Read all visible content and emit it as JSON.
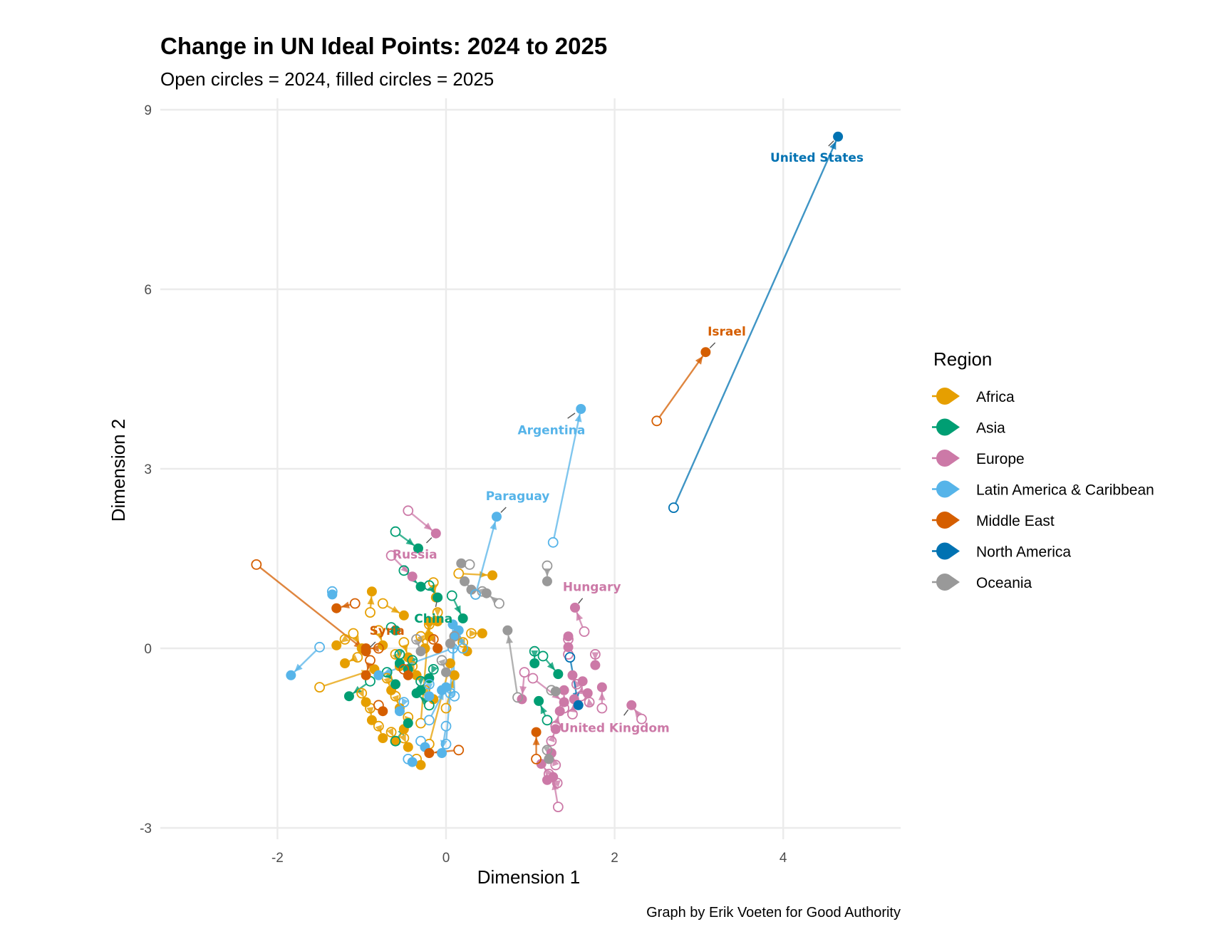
{
  "chart_data": {
    "type": "scatter",
    "title": "Change in UN Ideal Points: 2024 to 2025",
    "subtitle": "Open circles = 2024, filled circles = 2025",
    "xlabel": "Dimension 1",
    "ylabel": "Dimension 2",
    "caption": "Graph by Erik Voeten for Good Authority",
    "xlim": [
      -3.3,
      5.35
    ],
    "ylim": [
      -3.2,
      9.2
    ],
    "x_ticks": [
      -2,
      0,
      2,
      4
    ],
    "y_ticks": [
      -3,
      0,
      3,
      6,
      9
    ],
    "grid": true,
    "legend": {
      "title": "Region",
      "position": "right",
      "entries": [
        {
          "name": "Africa",
          "color": "#E69F00"
        },
        {
          "name": "Asia",
          "color": "#009E73"
        },
        {
          "name": "Europe",
          "color": "#CC79A7"
        },
        {
          "name": "Latin America & Caribbean",
          "color": "#56B4E9"
        },
        {
          "name": "Middle East",
          "color": "#D55E00"
        },
        {
          "name": "North America",
          "color": "#0072B2"
        },
        {
          "name": "Oceania",
          "color": "#999999"
        }
      ]
    },
    "encoding": {
      "open_circle": "2024",
      "filled_circle": "2025",
      "arrow": "movement from 2024 to 2025"
    },
    "labeled_countries": [
      {
        "name": "United States",
        "region": "North America",
        "x2024": 2.7,
        "y2024": 2.35,
        "x2025": 4.65,
        "y2025": 8.55,
        "label_dx": -0.25,
        "label_dy": -0.35
      },
      {
        "name": "Israel",
        "region": "Middle East",
        "x2024": 2.5,
        "y2024": 3.8,
        "x2025": 3.08,
        "y2025": 4.95,
        "label_dx": 0.25,
        "label_dy": 0.35
      },
      {
        "name": "Argentina",
        "region": "Latin America & Caribbean",
        "x2024": 1.27,
        "y2024": 1.77,
        "x2025": 1.6,
        "y2025": 4.0,
        "label_dx": -0.35,
        "label_dy": -0.35
      },
      {
        "name": "Paraguay",
        "region": "Latin America & Caribbean",
        "x2024": 0.35,
        "y2024": 0.9,
        "x2025": 0.6,
        "y2025": 2.2,
        "label_dx": 0.25,
        "label_dy": 0.35
      },
      {
        "name": "Syria",
        "region": "Middle East",
        "x2024": -2.25,
        "y2024": 1.4,
        "x2025": -0.95,
        "y2025": -0.05,
        "label_dx": 0.25,
        "label_dy": 0.35
      },
      {
        "name": "Russia",
        "region": "Europe",
        "x2024": -0.45,
        "y2024": 2.3,
        "x2025": -0.12,
        "y2025": 1.92,
        "label_dx": -0.25,
        "label_dy": -0.35
      },
      {
        "name": "China",
        "region": "Asia",
        "x2024": -0.2,
        "y2024": 1.05,
        "x2025": -0.1,
        "y2025": 0.85,
        "label_dx": -0.05,
        "label_dy": -0.35
      },
      {
        "name": "Hungary",
        "region": "Europe",
        "x2024": 1.64,
        "y2024": 0.28,
        "x2025": 1.53,
        "y2025": 0.68,
        "label_dx": 0.2,
        "label_dy": 0.35
      },
      {
        "name": "United Kingdom",
        "region": "Europe",
        "x2024": 2.32,
        "y2024": -1.18,
        "x2025": 2.2,
        "y2025": -0.95,
        "label_dx": -0.2,
        "label_dy": -0.38
      }
    ],
    "other_countries": [
      {
        "region": "Africa",
        "x2024": -0.9,
        "y2024": 0.6,
        "x2025": -0.88,
        "y2025": 0.95
      },
      {
        "region": "Africa",
        "x2024": -1.2,
        "y2024": 0.15,
        "x2025": -1.3,
        "y2025": 0.05
      },
      {
        "region": "Africa",
        "x2024": -1.1,
        "y2024": 0.25,
        "x2025": -1.0,
        "y2025": 0.0
      },
      {
        "region": "Africa",
        "x2024": -1.05,
        "y2024": -0.15,
        "x2025": -1.2,
        "y2025": -0.25
      },
      {
        "region": "Africa",
        "x2024": -1.5,
        "y2024": -0.65,
        "x2025": -0.85,
        "y2025": -0.35
      },
      {
        "region": "Africa",
        "x2024": -0.8,
        "y2024": 0.3,
        "x2025": -0.75,
        "y2025": 0.05
      },
      {
        "region": "Africa",
        "x2024": -0.6,
        "y2024": -0.1,
        "x2025": -0.55,
        "y2025": -0.3
      },
      {
        "region": "Africa",
        "x2024": -0.5,
        "y2024": 0.1,
        "x2025": -0.45,
        "y2025": -0.15
      },
      {
        "region": "Africa",
        "x2024": -0.4,
        "y2024": -0.3,
        "x2025": -0.35,
        "y2025": -0.45
      },
      {
        "region": "Africa",
        "x2024": -0.3,
        "y2024": 0.2,
        "x2025": -0.25,
        "y2025": 0.0
      },
      {
        "region": "Africa",
        "x2024": -0.2,
        "y2024": 0.4,
        "x2025": -0.2,
        "y2025": 0.2
      },
      {
        "region": "Africa",
        "x2024": -0.15,
        "y2024": 1.1,
        "x2025": -0.12,
        "y2025": 0.85
      },
      {
        "region": "Africa",
        "x2024": -0.1,
        "y2024": 0.6,
        "x2025": -0.1,
        "y2025": 0.45
      },
      {
        "region": "Africa",
        "x2024": 0.15,
        "y2024": 1.25,
        "x2025": 0.55,
        "y2025": 1.22
      },
      {
        "region": "Africa",
        "x2024": 0.3,
        "y2024": 0.25,
        "x2025": 0.43,
        "y2025": 0.25
      },
      {
        "region": "Africa",
        "x2024": -0.7,
        "y2024": -0.5,
        "x2025": -0.65,
        "y2025": -0.7
      },
      {
        "region": "Africa",
        "x2024": -0.6,
        "y2024": -0.8,
        "x2025": -0.55,
        "y2025": -1.0
      },
      {
        "region": "Africa",
        "x2024": -0.9,
        "y2024": -1.0,
        "x2025": -0.88,
        "y2025": -1.2
      },
      {
        "region": "Africa",
        "x2024": -0.8,
        "y2024": -1.3,
        "x2025": -0.75,
        "y2025": -1.5
      },
      {
        "region": "Africa",
        "x2024": -0.5,
        "y2024": -1.5,
        "x2025": -0.45,
        "y2025": -1.65
      },
      {
        "region": "Africa",
        "x2024": -0.35,
        "y2024": -1.85,
        "x2025": -0.3,
        "y2025": -1.95
      },
      {
        "region": "Africa",
        "x2024": -0.2,
        "y2024": -1.6,
        "x2025": 0.05,
        "y2025": -0.25
      },
      {
        "region": "Africa",
        "x2024": 0.0,
        "y2024": -1.0,
        "x2025": 0.1,
        "y2025": -0.45
      },
      {
        "region": "Africa",
        "x2024": -0.25,
        "y2024": -0.7,
        "x2025": -0.15,
        "y2025": -0.85
      },
      {
        "region": "Africa",
        "x2024": -0.45,
        "y2024": -1.15,
        "x2025": -0.5,
        "y2025": -1.35
      },
      {
        "region": "Africa",
        "x2024": -0.65,
        "y2024": -1.4,
        "x2025": -0.6,
        "y2025": -1.55
      },
      {
        "region": "Africa",
        "x2024": -1.0,
        "y2024": -0.75,
        "x2025": -0.95,
        "y2025": -0.9
      },
      {
        "region": "Africa",
        "x2024": -0.75,
        "y2024": 0.75,
        "x2025": -0.5,
        "y2025": 0.55
      },
      {
        "region": "Africa",
        "x2024": -0.3,
        "y2024": -1.25,
        "x2025": -0.2,
        "y2025": 0.45
      },
      {
        "region": "Africa",
        "x2024": 0.2,
        "y2024": 0.1,
        "x2025": 0.25,
        "y2025": -0.05
      },
      {
        "region": "Asia",
        "x2024": -0.6,
        "y2024": 1.95,
        "x2025": -0.33,
        "y2025": 1.67
      },
      {
        "region": "Asia",
        "x2024": -0.5,
        "y2024": 1.3,
        "x2025": -0.3,
        "y2025": 1.03
      },
      {
        "region": "Asia",
        "x2024": 0.07,
        "y2024": 0.88,
        "x2025": 0.2,
        "y2025": 0.5
      },
      {
        "region": "Asia",
        "x2024": -0.65,
        "y2024": 0.35,
        "x2025": -0.6,
        "y2025": 0.3
      },
      {
        "region": "Asia",
        "x2024": -0.55,
        "y2024": -0.1,
        "x2025": -0.55,
        "y2025": -0.25
      },
      {
        "region": "Asia",
        "x2024": -0.4,
        "y2024": -0.2,
        "x2025": -0.45,
        "y2025": -0.35
      },
      {
        "region": "Asia",
        "x2024": -0.7,
        "y2024": -0.4,
        "x2025": -0.6,
        "y2025": -0.6
      },
      {
        "region": "Asia",
        "x2024": -0.3,
        "y2024": -0.55,
        "x2025": -0.3,
        "y2025": -0.7
      },
      {
        "region": "Asia",
        "x2024": -0.15,
        "y2024": -0.35,
        "x2025": -0.2,
        "y2025": -0.5
      },
      {
        "region": "Asia",
        "x2024": -0.9,
        "y2024": -0.55,
        "x2025": -1.15,
        "y2025": -0.8
      },
      {
        "region": "Asia",
        "x2024": -0.6,
        "y2024": -1.55,
        "x2025": -0.45,
        "y2025": -1.25
      },
      {
        "region": "Asia",
        "x2024": -0.2,
        "y2024": -0.95,
        "x2025": -0.35,
        "y2025": -0.75
      },
      {
        "region": "Asia",
        "x2024": 1.05,
        "y2024": -0.05,
        "x2025": 1.05,
        "y2025": -0.25
      },
      {
        "region": "Asia",
        "x2024": 1.15,
        "y2024": -0.13,
        "x2025": 1.33,
        "y2025": -0.43
      },
      {
        "region": "Asia",
        "x2024": 1.2,
        "y2024": -1.2,
        "x2025": 1.1,
        "y2025": -0.88
      },
      {
        "region": "Europe",
        "x2024": -0.65,
        "y2024": 1.55,
        "x2025": -0.4,
        "y2025": 1.2
      },
      {
        "region": "Europe",
        "x2024": 0.93,
        "y2024": -0.4,
        "x2025": 0.9,
        "y2025": -0.85
      },
      {
        "region": "Europe",
        "x2024": 1.03,
        "y2024": -0.5,
        "x2025": 1.4,
        "y2025": -0.9
      },
      {
        "region": "Europe",
        "x2024": 1.77,
        "y2024": -0.1,
        "x2025": 1.77,
        "y2025": -0.28
      },
      {
        "region": "Europe",
        "x2024": 1.85,
        "y2024": -1.0,
        "x2025": 1.85,
        "y2025": -0.65
      },
      {
        "region": "Europe",
        "x2024": 1.45,
        "y2024": 0.15,
        "x2025": 1.45,
        "y2025": 0.2
      },
      {
        "region": "Europe",
        "x2024": 1.45,
        "y2024": -0.1,
        "x2025": 1.45,
        "y2025": 0.02
      },
      {
        "region": "Europe",
        "x2024": 1.55,
        "y2024": -0.6,
        "x2025": 1.5,
        "y2025": -0.45
      },
      {
        "region": "Europe",
        "x2024": 1.6,
        "y2024": -0.8,
        "x2025": 1.62,
        "y2025": -0.55
      },
      {
        "region": "Europe",
        "x2024": 1.7,
        "y2024": -0.9,
        "x2025": 1.68,
        "y2025": -0.75
      },
      {
        "region": "Europe",
        "x2024": 1.4,
        "y2024": -1.0,
        "x2025": 1.4,
        "y2025": -0.7
      },
      {
        "region": "Europe",
        "x2024": 1.5,
        "y2024": -1.1,
        "x2025": 1.52,
        "y2025": -0.85
      },
      {
        "region": "Europe",
        "x2024": 1.3,
        "y2024": -1.3,
        "x2025": 1.35,
        "y2025": -1.05
      },
      {
        "region": "Europe",
        "x2024": 1.25,
        "y2024": -1.55,
        "x2025": 1.3,
        "y2025": -1.35
      },
      {
        "region": "Europe",
        "x2024": 1.3,
        "y2024": -1.95,
        "x2025": 1.25,
        "y2025": -1.75
      },
      {
        "region": "Europe",
        "x2024": 1.33,
        "y2024": -2.65,
        "x2025": 1.27,
        "y2025": -2.15
      },
      {
        "region": "Europe",
        "x2024": 1.32,
        "y2024": -2.25,
        "x2025": 1.2,
        "y2025": -2.2
      },
      {
        "region": "Europe",
        "x2024": 1.22,
        "y2024": -2.1,
        "x2025": 1.13,
        "y2025": -1.93
      },
      {
        "region": "Latin America & Caribbean",
        "x2024": -1.5,
        "y2024": 0.02,
        "x2025": -1.84,
        "y2025": -0.45
      },
      {
        "region": "Latin America & Caribbean",
        "x2024": -1.35,
        "y2024": 0.95,
        "x2025": -1.35,
        "y2025": 0.9
      },
      {
        "region": "Latin America & Caribbean",
        "x2024": 0.08,
        "y2024": 0.0,
        "x2025": -0.8,
        "y2025": -0.45
      },
      {
        "region": "Latin America & Caribbean",
        "x2024": 0.1,
        "y2024": -0.8,
        "x2025": 0.08,
        "y2025": 0.4
      },
      {
        "region": "Latin America & Caribbean",
        "x2024": 0.0,
        "y2024": -1.6,
        "x2025": 0.1,
        "y2025": 0.2
      },
      {
        "region": "Latin America & Caribbean",
        "x2024": -0.2,
        "y2024": -1.2,
        "x2025": 0.0,
        "y2025": -0.65
      },
      {
        "region": "Latin America & Caribbean",
        "x2024": -0.3,
        "y2024": -1.55,
        "x2025": -0.25,
        "y2025": -1.65
      },
      {
        "region": "Latin America & Caribbean",
        "x2024": -0.45,
        "y2024": -1.85,
        "x2025": -0.4,
        "y2025": -1.9
      },
      {
        "region": "Latin America & Caribbean",
        "x2024": 0.0,
        "y2024": -1.3,
        "x2025": -0.05,
        "y2025": -1.75
      },
      {
        "region": "Latin America & Caribbean",
        "x2024": 0.2,
        "y2024": 0.0,
        "x2025": 0.15,
        "y2025": 0.3
      },
      {
        "region": "Latin America & Caribbean",
        "x2024": -0.5,
        "y2024": -0.9,
        "x2025": -0.55,
        "y2025": -1.05
      },
      {
        "region": "Latin America & Caribbean",
        "x2024": -0.2,
        "y2024": -0.6,
        "x2025": -0.2,
        "y2025": -0.8
      },
      {
        "region": "Latin America & Caribbean",
        "x2024": 0.05,
        "y2024": -0.75,
        "x2025": -0.05,
        "y2025": -0.7
      },
      {
        "region": "Middle East",
        "x2024": -1.08,
        "y2024": 0.75,
        "x2025": -1.3,
        "y2025": 0.67
      },
      {
        "region": "Middle East",
        "x2024": -0.8,
        "y2024": 0.0,
        "x2025": -0.95,
        "y2025": 0.0
      },
      {
        "region": "Middle East",
        "x2024": -0.9,
        "y2024": -0.2,
        "x2025": -0.95,
        "y2025": -0.45
      },
      {
        "region": "Middle East",
        "x2024": -0.5,
        "y2024": -0.35,
        "x2025": -0.45,
        "y2025": -0.45
      },
      {
        "region": "Middle East",
        "x2024": -0.8,
        "y2024": -0.95,
        "x2025": -0.75,
        "y2025": -1.05
      },
      {
        "region": "Middle East",
        "x2024": 0.15,
        "y2024": -1.7,
        "x2025": -0.2,
        "y2025": -1.75
      },
      {
        "region": "Middle East",
        "x2024": 1.07,
        "y2024": -1.85,
        "x2025": 1.07,
        "y2025": -1.4
      },
      {
        "region": "Middle East",
        "x2024": -0.15,
        "y2024": 0.15,
        "x2025": -0.1,
        "y2025": 0.0
      },
      {
        "region": "North America",
        "x2024": 1.47,
        "y2024": -0.15,
        "x2025": 1.57,
        "y2025": -0.95
      },
      {
        "region": "Oceania",
        "x2024": 0.28,
        "y2024": 1.4,
        "x2025": 0.18,
        "y2025": 1.42
      },
      {
        "region": "Oceania",
        "x2024": 0.35,
        "y2024": 0.9,
        "x2025": 0.22,
        "y2025": 1.12
      },
      {
        "region": "Oceania",
        "x2024": 0.43,
        "y2024": 0.95,
        "x2025": 0.3,
        "y2025": 0.98
      },
      {
        "region": "Oceania",
        "x2024": 0.63,
        "y2024": 0.75,
        "x2025": 0.48,
        "y2025": 0.92
      },
      {
        "region": "Oceania",
        "x2024": 1.2,
        "y2024": 1.38,
        "x2025": 1.2,
        "y2025": 1.12
      },
      {
        "region": "Oceania",
        "x2024": 0.85,
        "y2024": -0.82,
        "x2025": 0.73,
        "y2025": 0.3
      },
      {
        "region": "Oceania",
        "x2024": 1.2,
        "y2024": -1.7,
        "x2025": 1.22,
        "y2025": -1.85
      },
      {
        "region": "Oceania",
        "x2024": 1.25,
        "y2024": -0.7,
        "x2025": 1.3,
        "y2025": -0.72
      },
      {
        "region": "Oceania",
        "x2024": 0.1,
        "y2024": 0.2,
        "x2025": 0.05,
        "y2025": 0.08
      },
      {
        "region": "Oceania",
        "x2024": -0.05,
        "y2024": -0.2,
        "x2025": 0.0,
        "y2025": -0.4
      },
      {
        "region": "Oceania",
        "x2024": -0.35,
        "y2024": 0.15,
        "x2025": -0.3,
        "y2025": -0.05
      }
    ]
  }
}
